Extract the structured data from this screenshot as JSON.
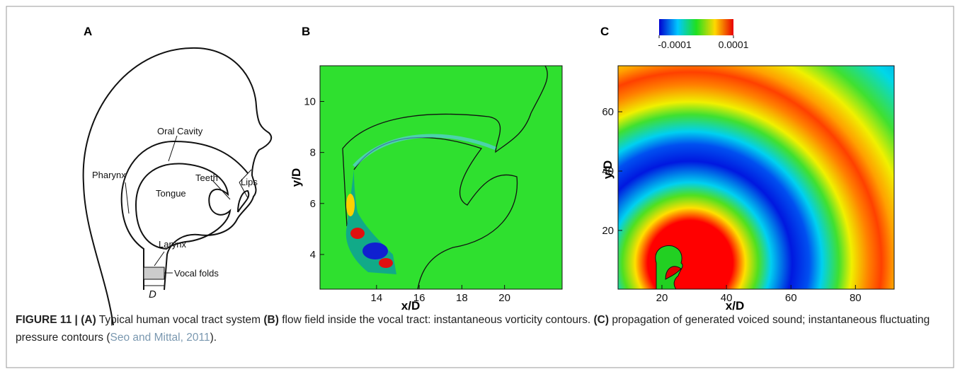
{
  "panels": [
    {
      "letter": "A",
      "labels": [
        "Oral Cavity",
        "Pharynx",
        "Teeth",
        "Lips",
        "Tongue",
        "Larynx",
        "Vocal folds",
        "D"
      ]
    },
    {
      "letter": "B",
      "xlabel": "x/D",
      "ylabel": "y/D",
      "xlim": [
        11.35,
        22.7
      ],
      "ylim": [
        2.64,
        11.4
      ],
      "xticks": [
        14,
        16,
        18,
        20
      ],
      "yticks": [
        4,
        6,
        8,
        10
      ]
    },
    {
      "letter": "C",
      "xlabel": "x/D",
      "ylabel": "y/D",
      "xlim": [
        6.4,
        92
      ],
      "ylim": [
        0.2,
        75.5
      ],
      "xticks": [
        20,
        40,
        60,
        80
      ],
      "yticks": [
        20,
        40,
        60
      ],
      "colorbar": {
        "ticks": [
          -0.0001,
          0.0001
        ]
      }
    }
  ],
  "caption": [
    "FIGURE 11 |",
    "(A)",
    "Typical human vocal tract system",
    "(B)",
    "flow field inside the vocal tract: instantaneous vorticity contours.",
    "(C)",
    "propagation of generated voiced sound; instantaneous fluctuating pressure contours (",
    "Seo and Mittal, 2011",
    ")."
  ]
}
